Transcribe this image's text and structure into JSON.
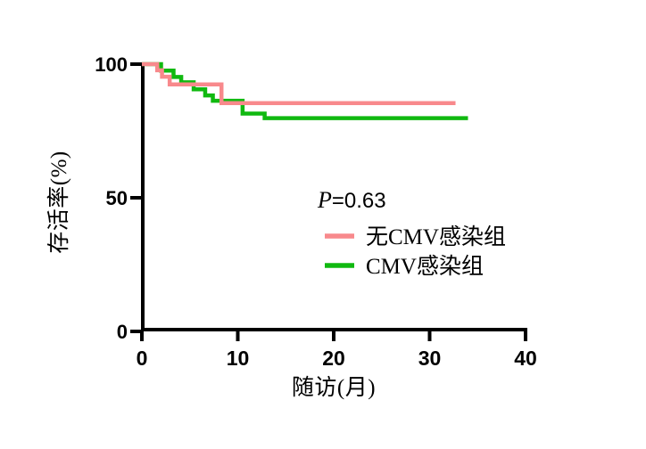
{
  "chart_data": {
    "type": "line",
    "subtype": "kaplan-meier-step-survival",
    "title": "",
    "xlabel": "随访(月)",
    "ylabel": "存活率(%)",
    "xlim": [
      0,
      40
    ],
    "ylim": [
      0,
      100
    ],
    "xticks": [
      0,
      10,
      20,
      30,
      40
    ],
    "yticks": [
      0,
      50,
      100
    ],
    "grid": false,
    "legend_position": "center-right",
    "annotation": {
      "p_italic": "P",
      "p_rest": "=0.63"
    },
    "axis_color": "#000000",
    "series": [
      {
        "name": "无CMV感染组",
        "color": "#F8898C",
        "end_month": 32.7,
        "steps": [
          [
            0,
            100
          ],
          [
            1.6,
            97.7
          ],
          [
            2.1,
            95.3
          ],
          [
            2.9,
            92.4
          ],
          [
            8.3,
            85.4
          ]
        ]
      },
      {
        "name": "CMV感染组",
        "color": "#10B910",
        "end_month": 34.0,
        "steps": [
          [
            0,
            100
          ],
          [
            2.0,
            97.6
          ],
          [
            3.3,
            95.2
          ],
          [
            4.1,
            93.2
          ],
          [
            5.4,
            90.6
          ],
          [
            6.6,
            88.3
          ],
          [
            7.4,
            86.3
          ],
          [
            10.5,
            81.5
          ],
          [
            12.8,
            79.8
          ]
        ]
      }
    ]
  }
}
